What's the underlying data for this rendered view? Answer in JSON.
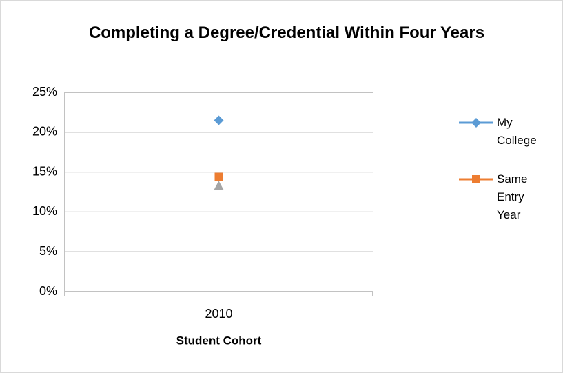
{
  "chart_data": {
    "type": "line",
    "title": "Completing a Degree/Credential Within Four Years",
    "x_label": "Student Cohort",
    "categories": [
      "2010"
    ],
    "series": [
      {
        "name": "My College",
        "color": "#5b9bd5",
        "marker": "diamond",
        "values": [
          21.5
        ]
      },
      {
        "name": "Same Entry Year",
        "color": "#ed7d31",
        "marker": "square",
        "values": [
          14.4
        ]
      },
      {
        "color": "#a5a5a5",
        "marker": "triangle",
        "values": [
          13.3
        ]
      }
    ],
    "ylim": [
      0,
      25
    ],
    "yticks": [
      {
        "value": 0,
        "label": "0%"
      },
      {
        "value": 5,
        "label": "5%"
      },
      {
        "value": 10,
        "label": "10%"
      },
      {
        "value": 15,
        "label": "15%"
      },
      {
        "value": 20,
        "label": "20%"
      },
      {
        "value": 25,
        "label": "25%"
      }
    ],
    "grid": true,
    "legend": "right"
  }
}
